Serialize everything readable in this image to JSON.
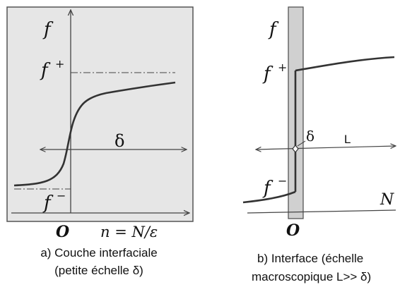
{
  "panel_a": {
    "f_axis": "f",
    "f_plus": "f",
    "f_plus_sup": "+",
    "f_minus": "f",
    "f_minus_sup": "−",
    "delta": "δ",
    "origin": "O",
    "x_axis": "n = N/ε",
    "caption_line1": "a) Couche interfaciale",
    "caption_line2": "(petite échelle δ)"
  },
  "panel_b": {
    "f_axis": "f",
    "f_plus": "f",
    "f_plus_sup": "+",
    "f_minus": "f",
    "f_minus_sup": "−",
    "delta": "δ",
    "length": "L",
    "n_label": "N",
    "origin": "O",
    "caption_line1": "b) Interface (échelle",
    "caption_line2": "macroscopique L>> δ)"
  },
  "colors": {
    "panel_bg": "#e6e6e6",
    "frame": "#555555",
    "strip_bg": "#d0d0d0",
    "curve": "#333333",
    "axis": "#444444"
  }
}
